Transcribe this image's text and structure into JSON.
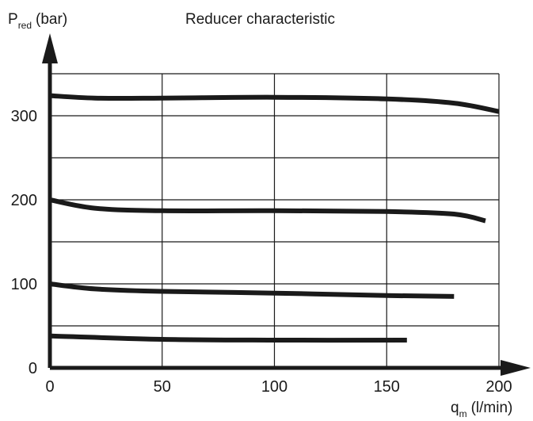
{
  "chart_data": {
    "type": "line",
    "title": "Reducer characteristic",
    "ylabel": {
      "symbol": "P",
      "subscript": "red",
      "unit": "(bar)"
    },
    "xlabel": {
      "symbol": "q",
      "subscript": "m",
      "unit": "(l/min)"
    },
    "xlim": [
      0,
      200
    ],
    "ylim": [
      0,
      300
    ],
    "xticks": [
      0,
      50,
      100,
      150,
      200
    ],
    "yticks": [
      0,
      100,
      200,
      300
    ],
    "xtick_labels": [
      "0",
      "50",
      "100",
      "150",
      "200"
    ],
    "ytick_labels": [
      "0",
      "100",
      "200",
      "300"
    ],
    "grid": true,
    "series": [
      {
        "x": [
          0,
          20,
          50,
          100,
          150,
          180,
          200
        ],
        "y": [
          324,
          321,
          321,
          322,
          320,
          315,
          305
        ]
      },
      {
        "x": [
          0,
          20,
          50,
          100,
          150,
          180,
          194
        ],
        "y": [
          200,
          190,
          187,
          187,
          186,
          183,
          175
        ]
      },
      {
        "x": [
          0,
          20,
          50,
          100,
          150,
          180
        ],
        "y": [
          100,
          94,
          91,
          89,
          86,
          85
        ]
      },
      {
        "x": [
          0,
          50,
          100,
          159
        ],
        "y": [
          38,
          34,
          33,
          33
        ]
      }
    ],
    "colors": {
      "line": "#1a1a1a",
      "grid": "#1a1a1a"
    }
  }
}
